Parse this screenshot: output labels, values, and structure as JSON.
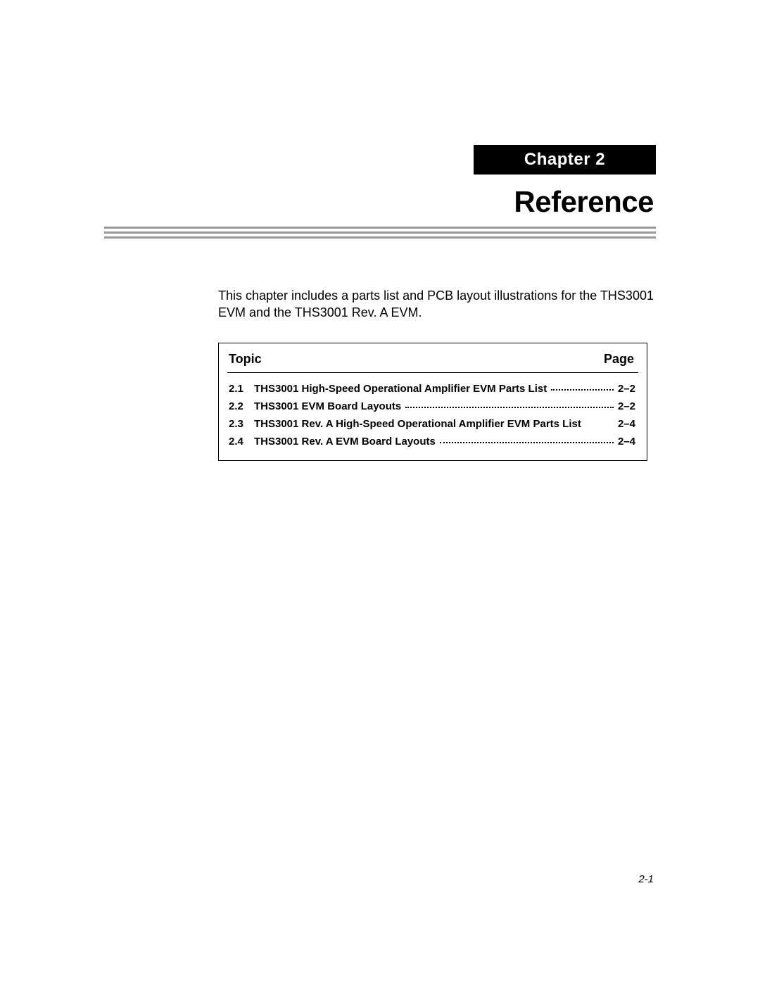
{
  "chapter": {
    "label": "Chapter 2"
  },
  "title": "Reference",
  "intro": "This chapter includes a parts list and PCB layout illustrations for the THS3001 EVM and the THS3001 Rev. A EVM.",
  "toc": {
    "topic_header": "Topic",
    "page_header": "Page",
    "entries": [
      {
        "num": "2.1",
        "title": "THS3001 High-Speed Operational Amplifier EVM Parts List",
        "page": "2–2",
        "dots": true
      },
      {
        "num": "2.2",
        "title": "THS3001 EVM Board Layouts",
        "page": "2–2",
        "dots": true
      },
      {
        "num": "2.3",
        "title": "THS3001 Rev. A High-Speed Operational Amplifier EVM Parts List",
        "page": "2–4",
        "dots": false
      },
      {
        "num": "2.4",
        "title": "THS3001 Rev. A EVM Board Layouts",
        "page": "2–4",
        "dots": true
      }
    ]
  },
  "footer": {
    "page_number": "2-1"
  },
  "colors": {
    "banner_bg": "#000000",
    "banner_fg": "#ffffff",
    "rule": "#999999",
    "text": "#000000",
    "page_bg": "#ffffff"
  },
  "fonts": {
    "title_size_pt": 32,
    "banner_size_pt": 18,
    "body_size_pt": 13,
    "toc_header_size_pt": 13,
    "toc_entry_size_pt": 11,
    "footer_size_pt": 11
  }
}
